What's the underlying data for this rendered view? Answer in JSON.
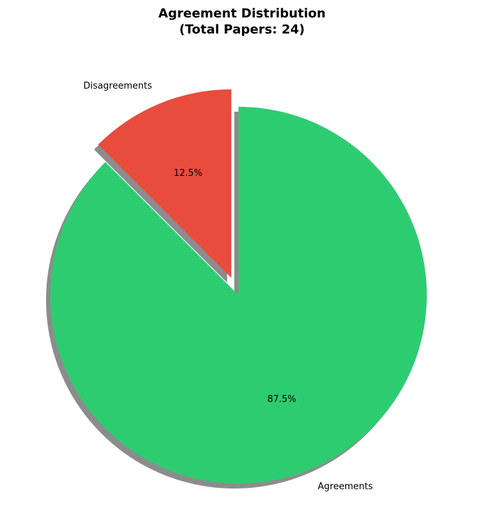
{
  "chart_data": {
    "type": "pie",
    "title_lines": [
      "Agreement Distribution",
      "(Total Papers: 24)"
    ],
    "start_angle_deg": 90,
    "counterclockwise": false,
    "shadow": true,
    "slices": [
      {
        "label": "Agreements",
        "value": 87.5,
        "percent_label": "87.5%",
        "color": "#2ecc71",
        "exploded": false
      },
      {
        "label": "Disagreements",
        "value": 12.5,
        "percent_label": "12.5%",
        "color": "#e74c3c",
        "exploded": true
      }
    ]
  }
}
